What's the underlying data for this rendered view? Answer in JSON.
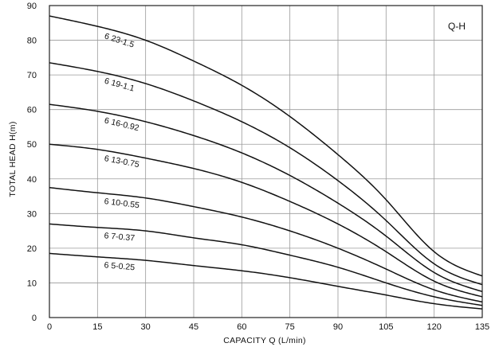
{
  "chart_data": {
    "type": "line",
    "title": "",
    "badge": "Q-H",
    "xlabel": "CAPACITY  Q (L/min)",
    "ylabel": "TOTAL HEAD  H(m)",
    "xlim": [
      0,
      135
    ],
    "ylim": [
      0,
      90
    ],
    "x_ticks": [
      "0",
      "15",
      "30",
      "45",
      "60",
      "75",
      "90",
      "105",
      "120",
      "135"
    ],
    "y_ticks": [
      "0",
      "10",
      "20",
      "30",
      "40",
      "50",
      "60",
      "70",
      "80",
      "90"
    ],
    "grid": true,
    "x": [
      0,
      15,
      30,
      45,
      60,
      75,
      90,
      105,
      120,
      135
    ],
    "series": [
      {
        "name": "6 23-1.5",
        "values": [
          87,
          84,
          80,
          74,
          67,
          58,
          47,
          34,
          19,
          12
        ]
      },
      {
        "name": "6 19-1.1",
        "values": [
          73.5,
          71,
          67.5,
          62.5,
          56.5,
          49,
          39.5,
          28,
          15.5,
          9.5
        ]
      },
      {
        "name": "6 16-0.92",
        "values": [
          61.5,
          59.5,
          56.5,
          52.5,
          47.5,
          41,
          33,
          23.5,
          13,
          7.5
        ]
      },
      {
        "name": "6 13-0.75",
        "values": [
          50,
          48.5,
          46,
          43,
          39,
          33.5,
          27,
          19,
          10.5,
          6
        ]
      },
      {
        "name": "6 10-0.55",
        "values": [
          37.5,
          36,
          34.5,
          32,
          29,
          25,
          20,
          14,
          8,
          4.5
        ]
      },
      {
        "name": "6 7-0.37",
        "values": [
          27,
          26,
          25,
          23,
          21,
          18,
          14.5,
          10,
          6,
          3.5
        ]
      },
      {
        "name": "6 5-0.25",
        "values": [
          18.5,
          17.5,
          16.5,
          15,
          13.5,
          11.5,
          9,
          6.5,
          4,
          2.5
        ]
      }
    ]
  }
}
